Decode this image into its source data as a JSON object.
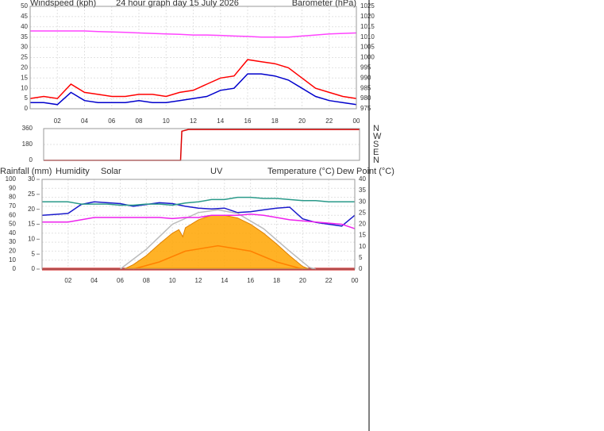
{
  "chart_data": [
    {
      "type": "line",
      "title": "24 hour graph day 15 July 2026",
      "ylabel": "Windspeed (kph)",
      "y2label": "Barometer (hPa)",
      "xlim": [
        0,
        24
      ],
      "x": [
        0,
        1,
        2,
        3,
        4,
        5,
        6,
        7,
        8,
        9,
        10,
        11,
        12,
        13,
        14,
        15,
        16,
        17,
        18,
        19,
        20,
        21,
        22,
        23,
        24
      ],
      "xticks": [
        {
          "value": 2,
          "label": "02"
        },
        {
          "value": 4,
          "label": "04"
        },
        {
          "value": 6,
          "label": "06"
        },
        {
          "value": 8,
          "label": "08"
        },
        10,
        12,
        14,
        16,
        18,
        20,
        22,
        {
          "value": 24,
          "label": "00"
        }
      ],
      "ylim": [
        0,
        50
      ],
      "yticks": [
        0,
        5,
        10,
        15,
        20,
        25,
        30,
        35,
        40,
        45,
        50
      ],
      "y2lim": [
        975,
        1025
      ],
      "y2ticks": [
        975,
        980,
        985,
        990,
        995,
        1000,
        1005,
        1010,
        1015,
        1020,
        1025
      ],
      "grid": true,
      "series": [
        {
          "color": "#ff0000",
          "values": [
            5,
            6,
            5,
            12,
            8,
            7,
            6,
            6,
            7,
            7,
            6,
            8,
            9,
            12,
            15,
            16,
            24,
            23,
            22,
            20,
            15,
            10,
            8,
            6,
            5
          ]
        },
        {
          "color": "#0000cc",
          "values": [
            3,
            3,
            2,
            8,
            4,
            3,
            3,
            3,
            4,
            3,
            3,
            4,
            5,
            6,
            9,
            10,
            17,
            17,
            16,
            14,
            10,
            6,
            4,
            3,
            2
          ]
        },
        {
          "color": "#ff44ff",
          "axis": "y2",
          "values": [
            1013,
            1013,
            1013,
            1013,
            1013,
            1012.7,
            1012.5,
            1012.3,
            1012,
            1011.8,
            1011.5,
            1011.3,
            1011,
            1011,
            1010.8,
            1010.5,
            1010.3,
            1010,
            1010,
            1010,
            1010.5,
            1011,
            1011.5,
            1011.8,
            1012
          ]
        }
      ]
    },
    {
      "type": "line",
      "xlim": [
        0,
        24
      ],
      "x": [
        0,
        10.4,
        10.5,
        11,
        24
      ],
      "ylim": [
        0,
        360
      ],
      "yticks": [
        0,
        180,
        360
      ],
      "y2ticks": [
        {
          "value": 360,
          "label": "N"
        },
        {
          "value": 270,
          "label": "W"
        },
        {
          "value": 180,
          "label": "S"
        },
        {
          "value": 90,
          "label": "E"
        },
        {
          "value": 0,
          "label": "N"
        }
      ],
      "grid": true,
      "series": [
        {
          "color": "#dd0000",
          "values": [
            0,
            0,
            330,
            350,
            350
          ]
        }
      ]
    },
    {
      "type": "line",
      "xlim": [
        0,
        24
      ],
      "x": [
        0,
        1,
        2,
        3,
        4,
        5,
        6,
        7,
        8,
        9,
        10,
        11,
        12,
        13,
        14,
        15,
        16,
        17,
        18,
        19,
        20,
        21,
        22,
        23,
        24
      ],
      "xticks": [
        {
          "value": 2,
          "label": "02"
        },
        {
          "value": 4,
          "label": "04"
        },
        {
          "value": 6,
          "label": "06"
        },
        {
          "value": 8,
          "label": "08"
        },
        10,
        12,
        14,
        16,
        18,
        20,
        22,
        {
          "value": 24,
          "label": "00"
        }
      ],
      "ylim": [
        0,
        100
      ],
      "yticks": [
        0,
        10,
        20,
        30,
        40,
        50,
        60,
        70,
        80,
        90,
        100
      ],
      "y3lim": [
        0,
        30
      ],
      "y3ticks": [
        0,
        5,
        10,
        15,
        20,
        25,
        30
      ],
      "y2lim": [
        0,
        40
      ],
      "y2ticks": [
        0,
        5,
        10,
        15,
        20,
        25,
        30,
        35,
        40
      ],
      "grid": true,
      "series": [
        {
          "name": "Rainfall (mm)",
          "color": "#cc0000",
          "axis": "y3",
          "x": [
            0,
            24
          ],
          "values": [
            0,
            0
          ]
        },
        {
          "name": "Humidity",
          "color": "#1a1acc",
          "values": [
            60,
            61,
            62,
            72,
            75,
            74,
            73,
            70,
            72,
            74,
            73,
            70,
            68,
            67,
            68,
            63,
            64,
            66,
            68,
            69,
            56,
            52,
            50,
            48,
            60
          ]
        },
        {
          "name": "Solar",
          "color": "#ffa500",
          "fill": true,
          "x": [
            6.3,
            7,
            8,
            9,
            10,
            10.5,
            10.8,
            11,
            12,
            13,
            14,
            15,
            16,
            17,
            18,
            19,
            20,
            20.5
          ],
          "values": [
            0,
            5,
            15,
            28,
            40,
            44,
            36,
            46,
            55,
            60,
            60,
            57,
            50,
            40,
            28,
            15,
            3,
            0
          ]
        },
        {
          "color": "#bbbbbb",
          "x": [
            6,
            8,
            10,
            12,
            13.5,
            15,
            17,
            19,
            20.5,
            21
          ],
          "values": [
            0,
            22,
            50,
            63,
            66,
            62,
            45,
            20,
            2,
            0
          ]
        },
        {
          "name": "UV",
          "color": "#ff8000",
          "x": [
            7,
            9,
            11,
            13.5,
            16,
            18,
            20
          ],
          "values": [
            0,
            8,
            20,
            26,
            20,
            8,
            0
          ]
        },
        {
          "name": "Temperature (°C)",
          "color": "#2a9a8a",
          "axis": "y2",
          "values": [
            30,
            30,
            30,
            29,
            29,
            29,
            28.5,
            28.5,
            29,
            29,
            28.5,
            29.5,
            30,
            31,
            31,
            32,
            32,
            31.5,
            31.5,
            31,
            30.5,
            30.5,
            30,
            30,
            30
          ]
        },
        {
          "name": "Dew Point (°C)",
          "color": "#ee22ee",
          "axis": "y2",
          "values": [
            21,
            21,
            21,
            22,
            23,
            23,
            23,
            23,
            23,
            23,
            22.5,
            23,
            23,
            24,
            24,
            24,
            24.5,
            24,
            23,
            22,
            21.5,
            21,
            20.5,
            20,
            18
          ]
        }
      ]
    }
  ]
}
